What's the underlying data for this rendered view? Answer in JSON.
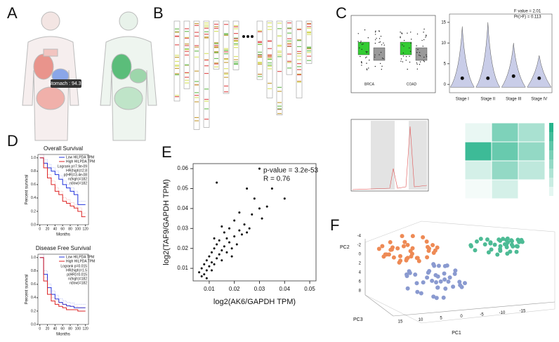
{
  "panel_labels": [
    "A",
    "B",
    "C",
    "D",
    "E",
    "F"
  ],
  "body_map": {
    "annotation": "Stomach : 94.35"
  },
  "chart_data": [
    {
      "type": "violin",
      "annotation": [
        "F value = 2.01",
        "Pr(>F) = 0.113"
      ],
      "categories": [
        "Stage I",
        "Stage II",
        "Stage III",
        "Stage IV"
      ],
      "values": [
        1.5,
        1.5,
        2,
        1.5
      ],
      "color": "#c9cde8",
      "ylim": [
        -2,
        17
      ],
      "yticks": [
        0,
        5,
        10,
        15
      ]
    },
    {
      "type": "survival",
      "title": "Overall Survival",
      "xlabel": "Months",
      "ylabel": "Percent survival",
      "stats": [
        "Logrank p=7.9e-09",
        "HR(high)=2.8",
        "p(HR)=3.4e-08",
        "n(high)=182",
        "n(low)=182"
      ],
      "x": [
        0,
        10,
        20,
        30,
        40,
        50,
        60,
        70,
        80,
        90,
        100,
        110,
        120
      ],
      "series": [
        {
          "name": "Low HILPDA TPM",
          "color": "#2233dd",
          "values": [
            1,
            0.92,
            0.85,
            0.8,
            0.75,
            0.68,
            0.6,
            0.55,
            0.5,
            0.45,
            0.3,
            0.3,
            0.3
          ]
        },
        {
          "name": "High HILPDA TPM",
          "color": "#dd2222",
          "values": [
            1,
            0.85,
            0.7,
            0.6,
            0.5,
            0.45,
            0.35,
            0.32,
            0.28,
            0.25,
            0.2,
            0.12,
            0.12
          ]
        }
      ],
      "xlim": [
        -5,
        128
      ],
      "ylim": [
        0,
        1.05
      ],
      "xticks": [
        0,
        20,
        40,
        60,
        80,
        100,
        120
      ],
      "yticks": [
        {
          "value": 0,
          "label": "0.0"
        },
        0.2,
        0.4,
        0.6,
        0.8,
        {
          "value": 1,
          "label": "1.0"
        }
      ]
    },
    {
      "type": "survival",
      "title": "Disease Free Survival",
      "xlabel": "Months",
      "ylabel": "Percent survival",
      "stats": [
        "Logrank p=0.015",
        "HR(high)=1.5",
        "p(HR)=0.015",
        "n(high)=182",
        "n(low)=182"
      ],
      "x": [
        0,
        10,
        20,
        30,
        40,
        50,
        60,
        70,
        80,
        90,
        100,
        110,
        120
      ],
      "series": [
        {
          "name": "Low HILPDA TPM",
          "color": "#2233dd",
          "values": [
            1,
            0.75,
            0.55,
            0.45,
            0.38,
            0.33,
            0.3,
            0.28,
            0.27,
            0.25,
            0.25,
            0.25,
            0.25
          ]
        },
        {
          "name": "High HILPDA TPM",
          "color": "#dd2222",
          "values": [
            1,
            0.65,
            0.45,
            0.35,
            0.3,
            0.27,
            0.25,
            0.22,
            0.22,
            0.22,
            0.2,
            0.2,
            0.2
          ]
        }
      ],
      "xlim": [
        -5,
        128
      ],
      "ylim": [
        0,
        1.05
      ],
      "xticks": [
        0,
        20,
        40,
        60,
        80,
        100,
        120
      ],
      "yticks": [
        {
          "value": 0,
          "label": "0.0"
        },
        0.2,
        0.4,
        0.6,
        0.8,
        {
          "value": 1,
          "label": "1.0"
        }
      ]
    },
    {
      "type": "scatter",
      "xlabel": "log2(AK6/GAPDH TPM)",
      "ylabel": "log2(TAF9/GAPDH TPM)",
      "annotation": [
        "p-value = 3.2e-53",
        "R = 0.76"
      ],
      "color": "#000000",
      "x": [
        0.006,
        0.007,
        0.008,
        0.008,
        0.009,
        0.009,
        0.01,
        0.01,
        0.011,
        0.011,
        0.012,
        0.012,
        0.013,
        0.013,
        0.014,
        0.014,
        0.015,
        0.015,
        0.016,
        0.016,
        0.017,
        0.017,
        0.018,
        0.018,
        0.019,
        0.02,
        0.02,
        0.021,
        0.022,
        0.023,
        0.024,
        0.025,
        0.026,
        0.027,
        0.028,
        0.03,
        0.031,
        0.033,
        0.035,
        0.04,
        0.013,
        0.025,
        0.03,
        0.009,
        0.012,
        0.015,
        0.007,
        0.022,
        0.019,
        0.011
      ],
      "values": [
        0.008,
        0.01,
        0.007,
        0.012,
        0.009,
        0.014,
        0.011,
        0.016,
        0.013,
        0.018,
        0.012,
        0.02,
        0.015,
        0.022,
        0.017,
        0.024,
        0.019,
        0.014,
        0.021,
        0.028,
        0.018,
        0.025,
        0.023,
        0.03,
        0.02,
        0.026,
        0.034,
        0.022,
        0.029,
        0.027,
        0.032,
        0.05,
        0.03,
        0.037,
        0.045,
        0.06,
        0.035,
        0.041,
        0.05,
        0.045,
        0.053,
        0.028,
        0.04,
        0.005,
        0.025,
        0.031,
        0.006,
        0.038,
        0.016,
        0.009
      ],
      "xlim": [
        0.0036,
        0.0525
      ],
      "ylim": [
        0.0037,
        0.0625
      ],
      "xticks": [
        0.01,
        0.02,
        0.03,
        0.04,
        0.05
      ],
      "yticks": [
        0.01,
        0.02,
        0.03,
        0.04,
        0.05,
        0.06
      ]
    },
    {
      "type": "pca3d",
      "xlabel": "PC1",
      "ylabel": "PC2",
      "zlabel": "PC3",
      "xticks": [
        15,
        10,
        5,
        0,
        -5,
        -10,
        -15
      ],
      "yticks": [
        -4,
        -2,
        0,
        2,
        4,
        6,
        8
      ],
      "colors": [
        "#ee8a55",
        "#4dbb95",
        "#8a9ad0"
      ]
    },
    {
      "type": "box",
      "categories": [
        "BRCA",
        "COAD"
      ],
      "colors": [
        "#33cc33",
        "#999999"
      ]
    }
  ]
}
